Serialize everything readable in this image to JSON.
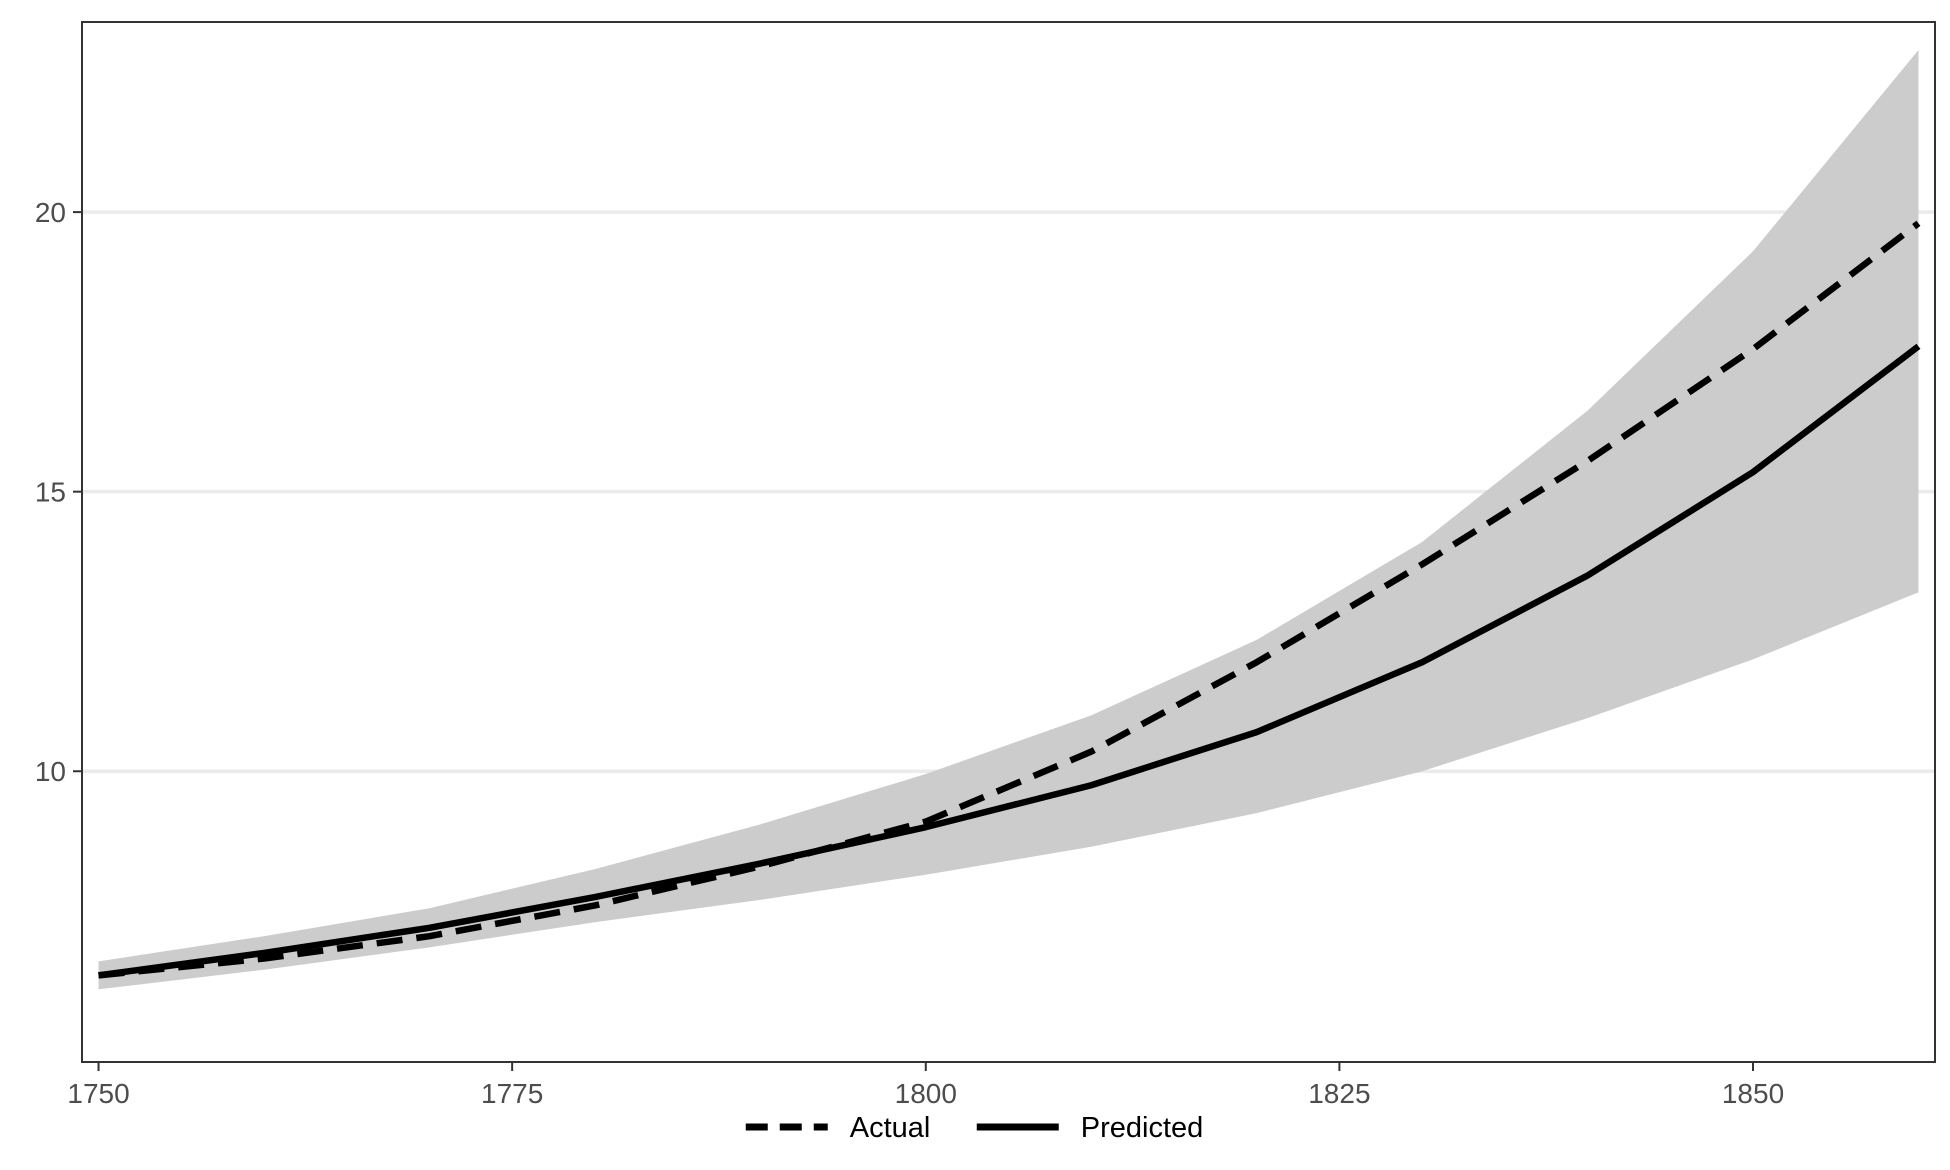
{
  "chart_data": {
    "type": "line",
    "title": "",
    "xlabel": "",
    "ylabel": "",
    "xlim": [
      1749,
      1861
    ],
    "ylim": [
      4.8,
      23.4
    ],
    "x_ticks": [
      1750,
      1775,
      1800,
      1825,
      1850
    ],
    "y_ticks": [
      10,
      15,
      20
    ],
    "x_tick_labels": [
      "1750",
      "1775",
      "1800",
      "1825",
      "1850"
    ],
    "y_tick_labels": [
      "10",
      "15",
      "20"
    ],
    "grid": {
      "horizontal_major": true,
      "vertical": false
    },
    "legend": {
      "position": "bottom"
    },
    "x": [
      1750,
      1760,
      1770,
      1780,
      1790,
      1800,
      1810,
      1820,
      1830,
      1840,
      1850,
      1860
    ],
    "ribbon": {
      "upper": [
        6.6,
        7.05,
        7.55,
        8.25,
        9.05,
        9.95,
        11.0,
        12.35,
        14.1,
        16.45,
        19.3,
        22.9
      ],
      "lower": [
        6.1,
        6.45,
        6.85,
        7.3,
        7.7,
        8.15,
        8.65,
        9.25,
        10.0,
        10.95,
        12.0,
        13.2
      ],
      "color": "#cccccc"
    },
    "series": [
      {
        "name": "Actual",
        "style": "dashed",
        "color": "#000000",
        "values": [
          6.35,
          6.65,
          7.05,
          7.6,
          8.3,
          9.1,
          10.35,
          11.95,
          13.7,
          15.55,
          17.55,
          19.8
        ]
      },
      {
        "name": "Predicted",
        "style": "solid",
        "color": "#000000",
        "values": [
          6.35,
          6.75,
          7.2,
          7.75,
          8.35,
          9.0,
          9.75,
          10.7,
          11.95,
          13.5,
          15.35,
          17.6
        ]
      }
    ],
    "legend_entries": [
      {
        "name": "Actual",
        "style": "dashed"
      },
      {
        "name": "Predicted",
        "style": "solid"
      }
    ]
  }
}
